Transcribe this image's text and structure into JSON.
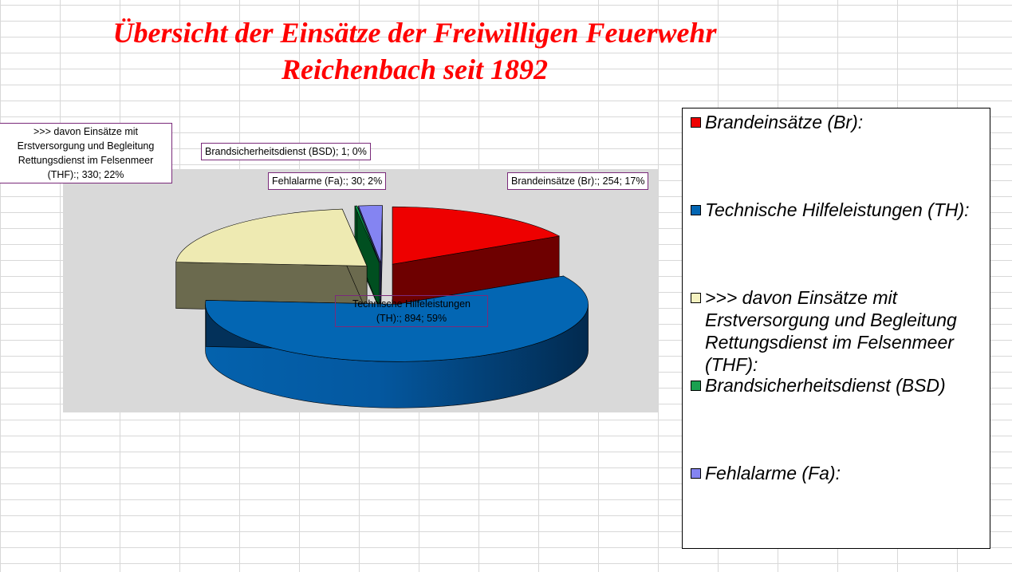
{
  "title_line1": "Übersicht der Einsätze der Freiwilligen Feuerwehr",
  "title_line2": "Reichenbach seit 1892",
  "chart_data": {
    "type": "pie",
    "style": "3d-exploded",
    "title": "Übersicht der Einsätze der Freiwilligen Feuerwehr Reichenbach seit 1892",
    "legend_position": "right",
    "series": [
      {
        "values": [
          254,
          894,
          330,
          1,
          30
        ],
        "categories": [
          "Brandeinsätze (Br):",
          "Technische Hilfeleistungen (TH):",
          ">>> davon Einsätze mit Erstversorgung und Begleitung Rettungsdienst im Felsenmeer (THF):",
          "Brandsicherheitsdienst (BSD)",
          "Fehlalarme (Fa):"
        ]
      }
    ],
    "slices": [
      {
        "name": "Brandeinsätze (Br):",
        "value": 254,
        "percent": "17%",
        "color": "#ee0000",
        "side_color": "#6e0000",
        "label": "Brandeinsätze (Br):; 254; 17%"
      },
      {
        "name": "Technische Hilfeleistungen (TH):",
        "value": 894,
        "percent": "59%",
        "color": "#0366b3",
        "side_color": "#03315a",
        "label": "Technische Hilfeleistungen (TH):; 894; 59%"
      },
      {
        "name": ">>> davon Einsätze mit Erstversorgung und Begleitung Rettungsdienst im Felsenmeer (THF):",
        "value": 330,
        "percent": "22%",
        "color": "#eeeab2",
        "side_color": "#6b6a4e",
        "label": ">>> davon Einsätze mit Erstversorgung und Begleitung Rettungsdienst im Felsenmeer (THF):; 330; 22%"
      },
      {
        "name": "Brandsicherheitsdienst (BSD)",
        "value": 1,
        "percent": "0%",
        "color": "#0a9e4a",
        "side_color": "#004f20",
        "label": "Brandsicherheitsdienst (BSD); 1; 0%"
      },
      {
        "name": "Fehlalarme (Fa):",
        "value": 30,
        "percent": "2%",
        "color": "#8484f2",
        "side_color": "#34346e",
        "label": "Fehlalarme (Fa):; 30; 2%"
      }
    ]
  },
  "legend": {
    "items": [
      {
        "label": "Brandeinsätze (Br):",
        "color": "#ee0000"
      },
      {
        "label": "Technische Hilfeleistungen (TH):",
        "color": "#0366b3"
      },
      {
        "label": ">>> davon Einsätze mit Erstversorgung und Begleitung Rettungsdienst im Felsenmeer (THF):",
        "color": "#f5f2c0"
      },
      {
        "label": "Brandsicherheitsdienst (BSD)",
        "color": "#1aa050"
      },
      {
        "label": "Fehlalarme (Fa):",
        "color": "#8484f2"
      }
    ]
  }
}
